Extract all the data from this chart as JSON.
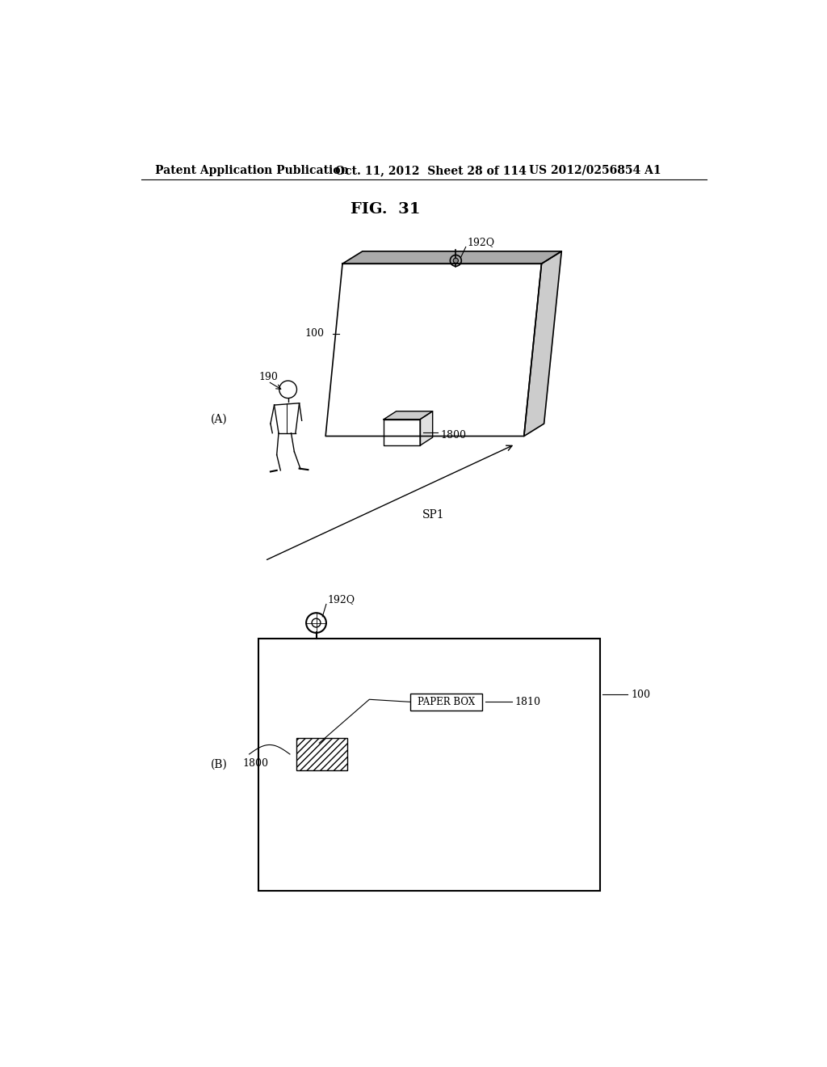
{
  "fig_title": "FIG.  31",
  "header_left": "Patent Application Publication",
  "header_mid": "Oct. 11, 2012  Sheet 28 of 114",
  "header_right": "US 2012/0256854 A1",
  "bg_color": "#ffffff",
  "line_color": "#000000",
  "label_A": "(A)",
  "label_B": "(B)",
  "label_190": "190",
  "label_192Q_top": "192Q",
  "label_192Q_bot": "192Q",
  "label_100_top": "100",
  "label_100_bot": "100",
  "label_1800_top": "1800",
  "label_1800_bot": "1800",
  "label_1810": "1810",
  "label_SP1": "SP1",
  "paper_box_text": "PAPER BOX"
}
